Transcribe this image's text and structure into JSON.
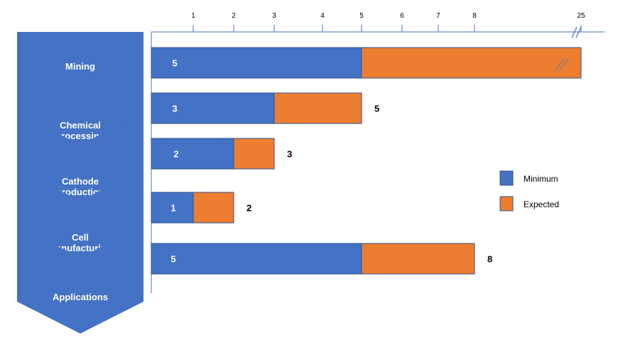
{
  "colors": {
    "minimum": "#4472C4",
    "expected": "#ED7D31",
    "chevron": "#4472C4",
    "axis": "#4472C4"
  },
  "chart_data": {
    "type": "bar",
    "orientation": "horizontal",
    "stacked": true,
    "axis_break": {
      "between": [
        8,
        25
      ]
    },
    "x_ticks": [
      "1",
      "2",
      "3",
      "4",
      "5",
      "6",
      "7",
      "8",
      "25"
    ],
    "categories": [
      "Mining",
      "Chemical processing",
      "Cathode production",
      "Cell Manufacturing",
      "Applications"
    ],
    "series": [
      {
        "name": "Minimum",
        "values": [
          5,
          3,
          2,
          1,
          5
        ]
      },
      {
        "name": "Expected",
        "values": [
          25,
          5,
          3,
          2,
          8
        ]
      }
    ],
    "bar_labels": [
      "5",
      "3",
      "2",
      "1",
      "5"
    ],
    "end_labels": [
      "",
      "5",
      "3",
      "2",
      "8"
    ],
    "legend": {
      "position": "right",
      "entries": [
        "Minimum",
        "Expected"
      ]
    }
  },
  "stages": [
    {
      "lines": [
        "Mining"
      ]
    },
    {
      "lines": [
        "Chemical",
        "processing"
      ]
    },
    {
      "lines": [
        "Cathode",
        "production"
      ]
    },
    {
      "lines": [
        "Cell",
        "Manufacturing"
      ]
    },
    {
      "lines": [
        "Applications"
      ]
    }
  ]
}
